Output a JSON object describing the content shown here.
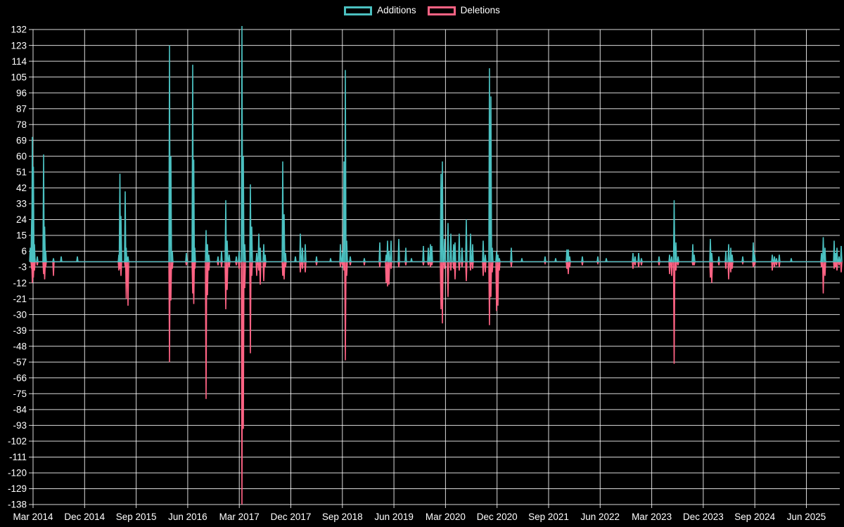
{
  "meta": {
    "background": "#000000",
    "text_color": "#ffffff",
    "grid_color": "#ffffff"
  },
  "legend": {
    "items": [
      {
        "label": "Additions",
        "color": "#4bc0c0"
      },
      {
        "label": "Deletions",
        "color": "#ff6384"
      }
    ]
  },
  "chart_data": {
    "type": "line",
    "title": "",
    "grid": true,
    "legend_position": "top-center",
    "background": "#000000",
    "series": [
      {
        "name": "Additions",
        "color": "#4bc0c0"
      },
      {
        "name": "Deletions",
        "color": "#ff6384"
      }
    ],
    "y_axis": {
      "min": -138,
      "max": 132,
      "step": 9,
      "tick_labels": [
        "132",
        "123",
        "114",
        "105",
        "96",
        "87",
        "78",
        "69",
        "60",
        "51",
        "42",
        "33",
        "24",
        "15",
        "6",
        "-3",
        "-12",
        "-21",
        "-30",
        "-39",
        "-48",
        "-57",
        "-66",
        "-75",
        "-84",
        "-93",
        "-102",
        "-111",
        "-120",
        "-129",
        "-138"
      ]
    },
    "x_axis": {
      "tick_labels": [
        "Mar 2014",
        "Dec 2014",
        "Sep 2015",
        "Jun 2016",
        "Mar 2017",
        "Dec 2017",
        "Sep 2018",
        "Jun 2019",
        "Mar 2020",
        "Dec 2020",
        "Sep 2021",
        "Jun 2022",
        "Mar 2023",
        "Dec 2023",
        "Sep 2024",
        "Jun 2025"
      ],
      "tick_interval_months": 9,
      "start": "Mar 2014",
      "end": "Jun 2025",
      "data_start_t": -0.6,
      "data_end_t": 141.2
    },
    "baseline_value": 0,
    "spike_format": [
      "t_months_since_Mar_2014",
      "additions",
      "deletions"
    ],
    "spikes": [
      [
        -0.49,
        8,
        0
      ],
      [
        -0.25,
        24,
        -4
      ],
      [
        -0.12,
        71,
        -12
      ],
      [
        0.06,
        54,
        -9
      ],
      [
        0.25,
        10,
        -5
      ],
      [
        0.74,
        3,
        -2
      ],
      [
        1.84,
        61,
        -7
      ],
      [
        2.03,
        20,
        -10
      ],
      [
        2.21,
        6,
        -3
      ],
      [
        3.56,
        2,
        -8
      ],
      [
        4.91,
        3,
        0
      ],
      [
        7.73,
        3,
        0
      ],
      [
        14.98,
        4,
        -5
      ],
      [
        15.16,
        50,
        -4
      ],
      [
        15.35,
        26,
        -8
      ],
      [
        16.08,
        40,
        -3
      ],
      [
        16.27,
        8,
        -21
      ],
      [
        16.58,
        3,
        -25
      ],
      [
        23.82,
        123,
        -57
      ],
      [
        24.06,
        60,
        -22
      ],
      [
        24.31,
        6,
        -4
      ],
      [
        26.76,
        5,
        -2
      ],
      [
        27.87,
        112,
        -18
      ],
      [
        28.05,
        58,
        -24
      ],
      [
        28.24,
        8,
        -4
      ],
      [
        30.2,
        18,
        -78
      ],
      [
        30.45,
        10,
        -19
      ],
      [
        30.69,
        4,
        -5
      ],
      [
        32.29,
        3,
        -2
      ],
      [
        32.9,
        6,
        -3
      ],
      [
        33.64,
        35,
        -27
      ],
      [
        33.89,
        12,
        -16
      ],
      [
        34.25,
        4,
        -3
      ],
      [
        35.48,
        3,
        -2
      ],
      [
        35.97,
        6,
        -4
      ],
      [
        36.47,
        134,
        -138
      ],
      [
        36.71,
        60,
        -95
      ],
      [
        36.96,
        10,
        -15
      ],
      [
        37.94,
        44,
        -52
      ],
      [
        38.18,
        20,
        -8
      ],
      [
        39.04,
        5,
        -8
      ],
      [
        39.41,
        16,
        -5
      ],
      [
        39.66,
        8,
        -13
      ],
      [
        40.27,
        10,
        -11
      ],
      [
        40.52,
        4,
        -3
      ],
      [
        43.59,
        57,
        -8
      ],
      [
        43.83,
        27,
        -10
      ],
      [
        44.08,
        5,
        -3
      ],
      [
        45.8,
        3,
        0
      ],
      [
        46.66,
        16,
        -6
      ],
      [
        47.03,
        8,
        -4
      ],
      [
        47.52,
        10,
        -6
      ],
      [
        49.48,
        3,
        -2
      ],
      [
        51.94,
        2,
        0
      ],
      [
        53.66,
        10,
        -3
      ],
      [
        54.03,
        5,
        -2
      ],
      [
        54.27,
        57,
        -5
      ],
      [
        54.52,
        109,
        -56
      ],
      [
        54.76,
        12,
        -8
      ],
      [
        55.38,
        3,
        -2
      ],
      [
        57.83,
        2,
        -2
      ],
      [
        60.53,
        11,
        -3
      ],
      [
        61.64,
        4,
        -12
      ],
      [
        61.88,
        12,
        -14
      ],
      [
        62.13,
        6,
        -13
      ],
      [
        62.5,
        12,
        -4
      ],
      [
        63.85,
        13,
        -3
      ],
      [
        65.07,
        8,
        -2
      ],
      [
        66.06,
        2,
        0
      ],
      [
        68.14,
        9,
        -2
      ],
      [
        69.0,
        8,
        -2
      ],
      [
        69.37,
        10,
        -3
      ],
      [
        69.62,
        9,
        -2
      ],
      [
        71.21,
        50,
        -27
      ],
      [
        71.46,
        57,
        -35
      ],
      [
        71.83,
        13,
        -4
      ],
      [
        72.44,
        22,
        -20
      ],
      [
        72.93,
        16,
        -5
      ],
      [
        73.42,
        10,
        -4
      ],
      [
        73.67,
        11,
        -10
      ],
      [
        74.4,
        16,
        -5
      ],
      [
        74.89,
        8,
        -3
      ],
      [
        75.63,
        24,
        -11
      ],
      [
        76.37,
        16,
        -5
      ],
      [
        76.74,
        10,
        -4
      ],
      [
        78.58,
        12,
        -8
      ],
      [
        78.95,
        4,
        -6
      ],
      [
        79.68,
        110,
        -36
      ],
      [
        79.93,
        94,
        -20
      ],
      [
        80.17,
        8,
        -6
      ],
      [
        80.91,
        6,
        -28
      ],
      [
        81.16,
        4,
        -25
      ],
      [
        81.4,
        2,
        -5
      ],
      [
        83.49,
        8,
        -3
      ],
      [
        85.33,
        2,
        0
      ],
      [
        89.38,
        3,
        -1
      ],
      [
        91.23,
        2,
        0
      ],
      [
        93.19,
        7,
        -4
      ],
      [
        93.44,
        7,
        -7
      ],
      [
        93.68,
        3,
        -3
      ],
      [
        95.89,
        3,
        -2
      ],
      [
        98.59,
        3,
        -1
      ],
      [
        100.07,
        2,
        0
      ],
      [
        104.73,
        5,
        -4
      ],
      [
        105.1,
        3,
        -2
      ],
      [
        105.72,
        5,
        -3
      ],
      [
        106.21,
        2,
        -2
      ],
      [
        109.28,
        3,
        -2
      ],
      [
        111.12,
        4,
        -7
      ],
      [
        111.49,
        3,
        -8
      ],
      [
        111.92,
        35,
        -58
      ],
      [
        112.23,
        11,
        -5
      ],
      [
        112.6,
        3,
        -2
      ],
      [
        115.17,
        10,
        -2
      ],
      [
        115.42,
        4,
        -2
      ],
      [
        118.24,
        13,
        -9
      ],
      [
        118.49,
        5,
        -12
      ],
      [
        119.72,
        3,
        -2
      ],
      [
        120.94,
        6,
        -4
      ],
      [
        121.43,
        10,
        -10
      ],
      [
        121.8,
        8,
        -6
      ],
      [
        122.05,
        4,
        -4
      ],
      [
        123.89,
        3,
        -1
      ],
      [
        125.73,
        11,
        -3
      ],
      [
        125.98,
        4,
        -2
      ],
      [
        129.05,
        4,
        -5
      ],
      [
        129.42,
        3,
        -3
      ],
      [
        129.78,
        2,
        -2
      ],
      [
        130.27,
        4,
        -3
      ],
      [
        132.36,
        2,
        0
      ],
      [
        137.64,
        5,
        -3
      ],
      [
        137.95,
        14,
        -18
      ],
      [
        138.25,
        8,
        -8
      ],
      [
        139.85,
        12,
        -4
      ],
      [
        140.1,
        5,
        -3
      ],
      [
        140.34,
        8,
        -5
      ],
      [
        140.71,
        3,
        -2
      ],
      [
        141.08,
        9,
        -6
      ]
    ]
  }
}
